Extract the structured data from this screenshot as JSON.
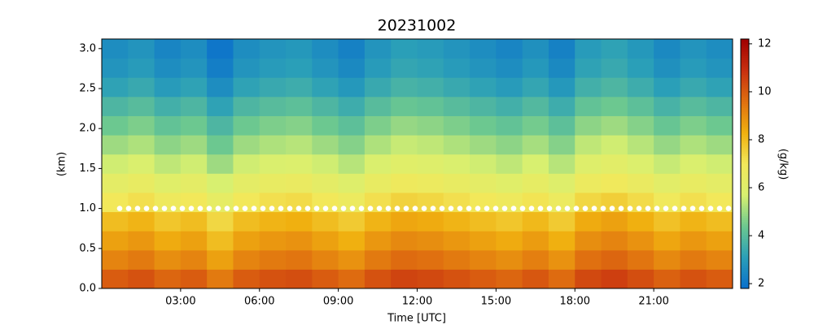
{
  "chart_data": {
    "type": "heatmap",
    "title": "20231002",
    "x_label": "Time [UTC]",
    "y_label": "(km)",
    "colorbar_label": "(g/kg)",
    "x": [
      0.5,
      1.5,
      2.5,
      3.5,
      4.5,
      5.5,
      6.5,
      7.5,
      8.5,
      9.5,
      10.5,
      11.5,
      12.5,
      13.5,
      14.5,
      15.5,
      16.5,
      17.5,
      18.5,
      19.5,
      20.5,
      21.5,
      22.5,
      23.5
    ],
    "y": [
      0.12,
      0.36,
      0.6,
      0.84,
      1.08,
      1.32,
      1.56,
      1.8,
      2.04,
      2.28,
      2.52,
      2.76,
      3.0
    ],
    "z": [
      [
        10.0,
        10.2,
        9.8,
        10.0,
        9.4,
        10.0,
        10.2,
        10.3,
        10.0,
        9.7,
        10.2,
        10.5,
        10.4,
        10.2,
        10.0,
        9.8,
        10.1,
        9.7,
        10.4,
        10.6,
        10.3,
        9.9,
        10.2,
        10.0
      ],
      [
        9.2,
        9.4,
        9.0,
        9.2,
        8.6,
        9.2,
        9.4,
        9.5,
        9.2,
        8.9,
        9.4,
        9.7,
        9.6,
        9.4,
        9.2,
        9.0,
        9.3,
        8.9,
        9.6,
        9.8,
        9.5,
        9.1,
        9.4,
        9.2
      ],
      [
        8.6,
        8.8,
        8.4,
        8.6,
        8.0,
        8.6,
        8.8,
        8.9,
        8.6,
        8.3,
        8.8,
        9.1,
        9.0,
        8.8,
        8.6,
        8.4,
        8.7,
        8.3,
        9.0,
        9.2,
        8.9,
        8.5,
        8.8,
        8.6
      ],
      [
        8.0,
        8.2,
        7.8,
        8.0,
        7.4,
        8.0,
        8.2,
        8.3,
        8.0,
        7.7,
        8.2,
        8.5,
        8.4,
        8.2,
        8.0,
        7.8,
        8.1,
        7.7,
        8.4,
        8.6,
        8.3,
        7.9,
        8.2,
        8.0
      ],
      [
        7.0,
        7.2,
        6.8,
        7.0,
        6.4,
        7.0,
        7.2,
        7.3,
        7.0,
        6.7,
        7.2,
        7.5,
        7.4,
        7.2,
        7.0,
        6.8,
        7.1,
        6.7,
        7.4,
        7.6,
        7.3,
        6.9,
        7.2,
        7.0
      ],
      [
        6.3,
        6.5,
        6.1,
        6.3,
        5.7,
        6.3,
        6.5,
        6.6,
        6.3,
        6.0,
        6.5,
        6.8,
        6.7,
        6.5,
        6.3,
        6.1,
        6.4,
        6.0,
        6.7,
        6.9,
        6.6,
        6.2,
        6.5,
        6.3
      ],
      [
        5.6,
        5.8,
        5.4,
        5.6,
        5.0,
        5.6,
        5.8,
        5.9,
        5.6,
        5.3,
        5.8,
        6.1,
        6.0,
        5.8,
        5.6,
        5.4,
        5.7,
        5.3,
        6.0,
        6.2,
        5.9,
        5.5,
        5.8,
        5.6
      ],
      [
        5.0,
        5.2,
        4.8,
        5.0,
        4.4,
        5.0,
        5.2,
        5.3,
        5.0,
        4.7,
        5.2,
        5.5,
        5.4,
        5.2,
        5.0,
        4.8,
        5.1,
        4.7,
        5.4,
        5.6,
        5.3,
        4.9,
        5.2,
        5.0
      ],
      [
        4.4,
        4.6,
        4.2,
        4.4,
        3.8,
        4.4,
        4.6,
        4.7,
        4.4,
        4.1,
        4.6,
        4.9,
        4.8,
        4.6,
        4.4,
        4.2,
        4.5,
        4.1,
        4.8,
        5.0,
        4.7,
        4.3,
        4.6,
        4.4
      ],
      [
        3.8,
        4.0,
        3.6,
        3.8,
        3.2,
        3.8,
        4.0,
        4.1,
        3.8,
        3.5,
        4.0,
        4.3,
        4.2,
        4.0,
        3.8,
        3.6,
        3.9,
        3.5,
        4.2,
        4.4,
        4.1,
        3.7,
        4.0,
        3.8
      ],
      [
        3.2,
        3.4,
        3.0,
        3.2,
        2.6,
        3.2,
        3.4,
        3.5,
        3.2,
        2.9,
        3.4,
        3.7,
        3.6,
        3.4,
        3.2,
        3.0,
        3.3,
        2.9,
        3.6,
        3.8,
        3.5,
        3.1,
        3.4,
        3.2
      ],
      [
        2.8,
        3.0,
        2.6,
        2.8,
        2.2,
        2.8,
        3.0,
        3.1,
        2.8,
        2.5,
        3.0,
        3.3,
        3.2,
        3.0,
        2.8,
        2.6,
        2.9,
        2.5,
        3.2,
        3.4,
        3.1,
        2.7,
        3.0,
        2.8
      ],
      [
        2.6,
        2.8,
        2.4,
        2.6,
        2.0,
        2.6,
        2.8,
        2.9,
        2.6,
        2.3,
        2.8,
        3.1,
        3.0,
        2.8,
        2.6,
        2.4,
        2.7,
        2.3,
        3.0,
        3.2,
        2.9,
        2.5,
        2.8,
        2.6
      ]
    ],
    "xlim": [
      0,
      24
    ],
    "xticks": [
      {
        "value": 3,
        "label": "03:00"
      },
      {
        "value": 6,
        "label": "06:00"
      },
      {
        "value": 9,
        "label": "09:00"
      },
      {
        "value": 12,
        "label": "12:00"
      },
      {
        "value": 15,
        "label": "15:00"
      },
      {
        "value": 18,
        "label": "18:00"
      },
      {
        "value": 21,
        "label": "21:00"
      }
    ],
    "ylim": [
      0,
      3.12
    ],
    "yticks": [
      {
        "value": 0,
        "label": "0.0"
      },
      0.5,
      {
        "value": 1,
        "label": "1.0"
      },
      1.5,
      {
        "value": 2,
        "label": "2.0"
      },
      2.5,
      {
        "value": 3,
        "label": "3.0"
      }
    ],
    "clim": [
      1.8,
      12.2
    ],
    "cticks": [
      2,
      4,
      6,
      8,
      10,
      12
    ],
    "colormap": [
      "#0a6fcc",
      "#2a9fb8",
      "#6cc890",
      "#d8f070",
      "#f2e85a",
      "#f0b010",
      "#e07010",
      "#c83010",
      "#a00000"
    ],
    "marker_line": {
      "y": 1.0,
      "color": "#ffffff"
    }
  }
}
